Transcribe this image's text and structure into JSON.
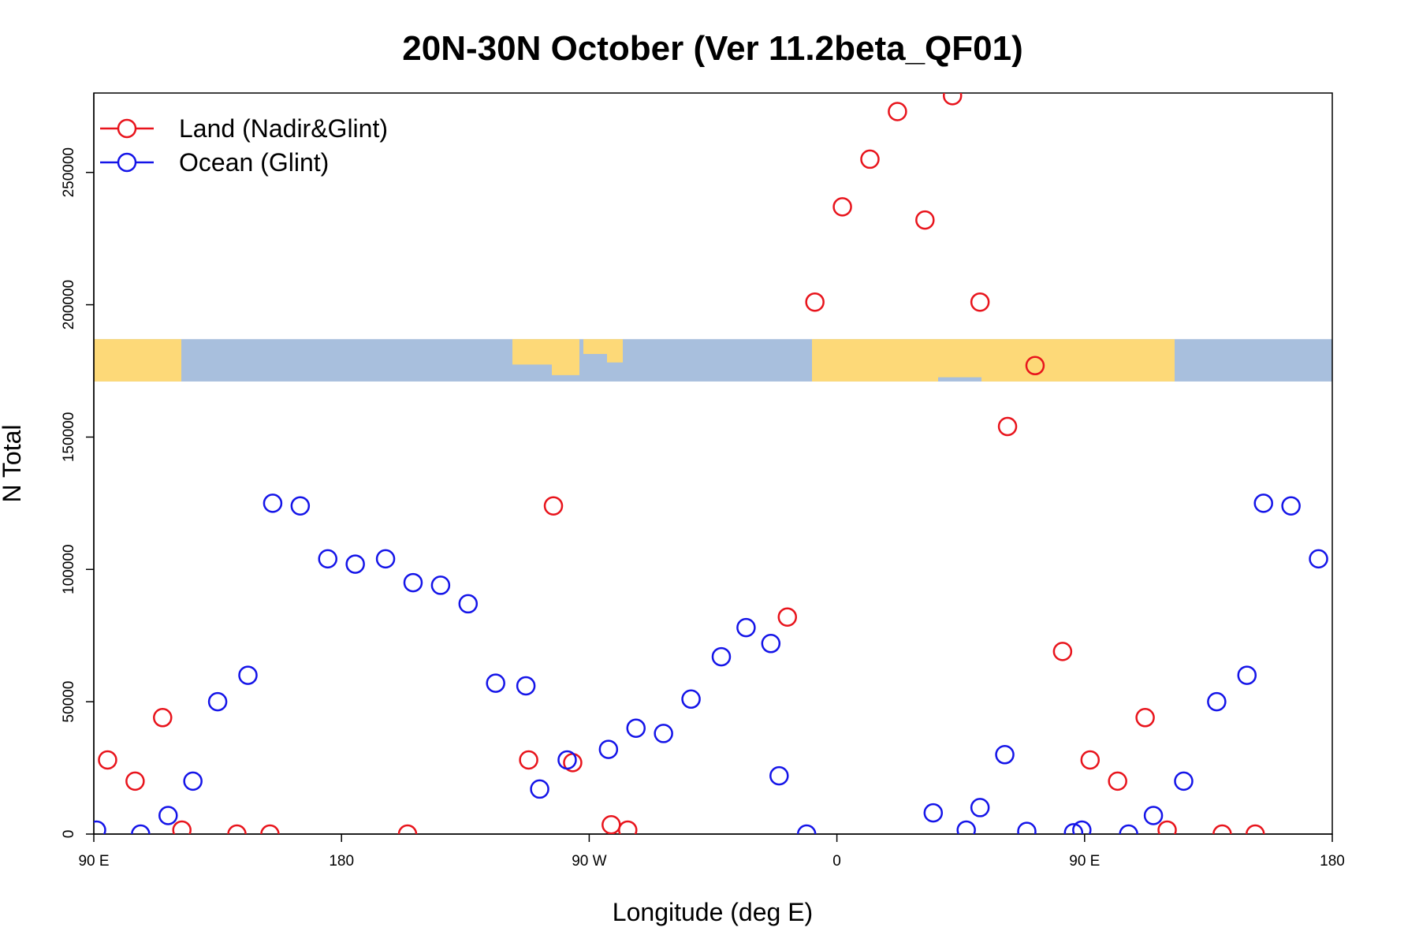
{
  "chart_data": {
    "type": "scatter",
    "title": "20N-30N October (Ver 11.2beta_QF01)",
    "xlabel": "Longitude (deg E)",
    "ylabel": "N Total",
    "xlim": [
      90,
      540
    ],
    "ylim": [
      0,
      280000
    ],
    "x_ticks": [
      {
        "value": 90,
        "label": "90 E"
      },
      {
        "value": 180,
        "label": "180"
      },
      {
        "value": 270,
        "label": "90 W"
      },
      {
        "value": 360,
        "label": "0"
      },
      {
        "value": 450,
        "label": "90 E"
      },
      {
        "value": 540,
        "label": "180"
      }
    ],
    "y_ticks": [
      {
        "value": 0,
        "label": "0"
      },
      {
        "value": 50000,
        "label": "50000"
      },
      {
        "value": 100000,
        "label": "100000"
      },
      {
        "value": 150000,
        "label": "150000"
      },
      {
        "value": 200000,
        "label": "200000"
      },
      {
        "value": 250000,
        "label": "250000"
      }
    ],
    "legend_position": "top-left",
    "map_strip": {
      "y_range": [
        171000,
        187000
      ],
      "ocean_color": "#a8bfdd",
      "land_color": "#fdd978"
    },
    "series": [
      {
        "name": "Land (Nadir&Glint)",
        "color": "#e8141c",
        "points": [
          [
            95,
            28000
          ],
          [
            105,
            20000
          ],
          [
            115,
            44000
          ],
          [
            122,
            1500
          ],
          [
            142,
            0
          ],
          [
            154,
            0
          ],
          [
            204,
            0
          ],
          [
            248,
            28000
          ],
          [
            257,
            124000
          ],
          [
            264,
            27000
          ],
          [
            278,
            3500
          ],
          [
            284,
            1500
          ],
          [
            342,
            82000
          ],
          [
            352,
            201000
          ],
          [
            362,
            237000
          ],
          [
            372,
            255000
          ],
          [
            382,
            273000
          ],
          [
            392,
            232000
          ],
          [
            402,
            279000
          ],
          [
            412,
            201000
          ],
          [
            422,
            154000
          ],
          [
            432,
            177000
          ],
          [
            442,
            69000
          ],
          [
            452,
            28000
          ],
          [
            462,
            20000
          ],
          [
            472,
            44000
          ],
          [
            480,
            1500
          ],
          [
            500,
            0
          ],
          [
            512,
            0
          ]
        ]
      },
      {
        "name": "Ocean (Glint)",
        "color": "#1414e8",
        "points": [
          [
            91,
            1500
          ],
          [
            107,
            0
          ],
          [
            117,
            7000
          ],
          [
            126,
            20000
          ],
          [
            135,
            50000
          ],
          [
            146,
            60000
          ],
          [
            155,
            125000
          ],
          [
            165,
            124000
          ],
          [
            175,
            104000
          ],
          [
            185,
            102000
          ],
          [
            196,
            104000
          ],
          [
            206,
            95000
          ],
          [
            216,
            94000
          ],
          [
            226,
            87000
          ],
          [
            236,
            57000
          ],
          [
            247,
            56000
          ],
          [
            252,
            17000
          ],
          [
            262,
            28000
          ],
          [
            277,
            32000
          ],
          [
            287,
            40000
          ],
          [
            297,
            38000
          ],
          [
            307,
            51000
          ],
          [
            318,
            67000
          ],
          [
            327,
            78000
          ],
          [
            336,
            72000
          ],
          [
            339,
            22000
          ],
          [
            349,
            0
          ],
          [
            395,
            8000
          ],
          [
            407,
            1500
          ],
          [
            412,
            10000
          ],
          [
            421,
            30000
          ],
          [
            429,
            1000
          ],
          [
            446,
            500
          ],
          [
            449,
            1500
          ],
          [
            466,
            0
          ],
          [
            475,
            7000
          ],
          [
            486,
            20000
          ],
          [
            498,
            50000
          ],
          [
            509,
            60000
          ],
          [
            515,
            125000
          ],
          [
            525,
            124000
          ],
          [
            535,
            104000
          ]
        ]
      }
    ]
  }
}
